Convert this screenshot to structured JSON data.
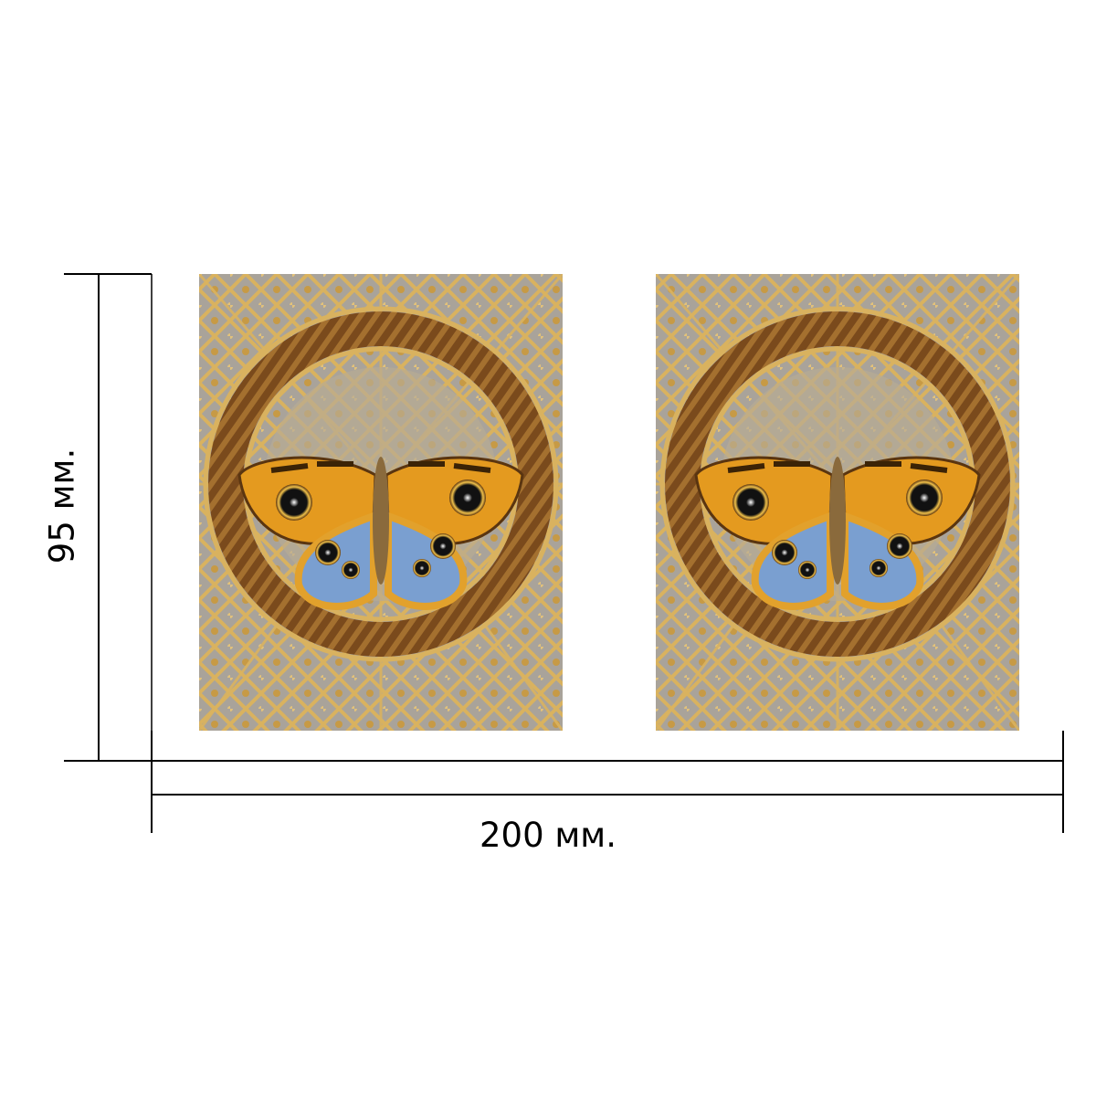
{
  "dimensions": {
    "width_label": "200 мм.",
    "height_label": "95 мм."
  },
  "panels": [
    {
      "motif": "butterfly-kaleidoscope"
    },
    {
      "motif": "butterfly-kaleidoscope"
    }
  ],
  "colors": {
    "background": "#ffffff",
    "line": "#000000",
    "gold": "#d9b25f",
    "gray": "#a9a39a",
    "ring_brown": "#7a4a1c",
    "wing_orange": "#e49a1f",
    "wing_blue": "#7a9fd0"
  }
}
